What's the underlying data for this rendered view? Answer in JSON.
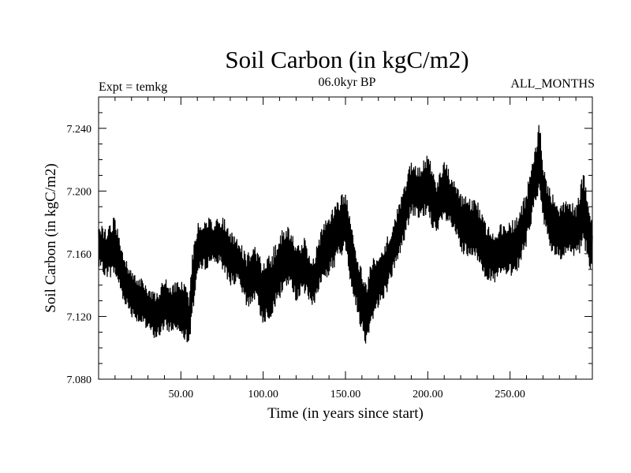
{
  "header": {
    "title": "Soil Carbon (in kgC/m2)",
    "subtitle": "06.0kyr BP",
    "expt": "Expt = temkg",
    "months": "ALL_MONTHS"
  },
  "chart_data": {
    "type": "line",
    "title": "Soil Carbon (in kgC/m2)",
    "xlabel": "Time (in years since start)",
    "ylabel": "Soil Carbon (in kgC/m2)",
    "xlim": [
      0,
      300
    ],
    "ylim": [
      7.08,
      7.26
    ],
    "xticks": [
      50,
      100,
      150,
      200,
      250
    ],
    "xtick_labels": [
      "50.00",
      "100.00",
      "150.00",
      "200.00",
      "250.00"
    ],
    "yticks": [
      7.08,
      7.12,
      7.16,
      7.2,
      7.24
    ],
    "ytick_labels": [
      "7.080",
      "7.120",
      "7.160",
      "7.200",
      "7.240"
    ],
    "grid": false,
    "color": "#000000",
    "series": [
      {
        "x": [
          0,
          5,
          10,
          15,
          20,
          25,
          30,
          35,
          40,
          45,
          50,
          55,
          57,
          60,
          65,
          70,
          75,
          80,
          85,
          90,
          95,
          100,
          105,
          110,
          115,
          120,
          125,
          130,
          135,
          140,
          145,
          150,
          155,
          160,
          163,
          165,
          170,
          175,
          180,
          185,
          190,
          195,
          200,
          205,
          210,
          215,
          220,
          225,
          230,
          235,
          240,
          245,
          250,
          255,
          260,
          265,
          268,
          270,
          275,
          280,
          285,
          290,
          295,
          300
        ],
        "y_upper": [
          7.18,
          7.175,
          7.185,
          7.16,
          7.15,
          7.145,
          7.14,
          7.135,
          7.145,
          7.14,
          7.145,
          7.135,
          7.16,
          7.18,
          7.185,
          7.18,
          7.185,
          7.175,
          7.17,
          7.16,
          7.165,
          7.155,
          7.16,
          7.175,
          7.18,
          7.165,
          7.17,
          7.155,
          7.175,
          7.185,
          7.195,
          7.2,
          7.17,
          7.15,
          7.14,
          7.155,
          7.16,
          7.17,
          7.185,
          7.2,
          7.22,
          7.215,
          7.225,
          7.205,
          7.22,
          7.21,
          7.2,
          7.195,
          7.195,
          7.18,
          7.175,
          7.18,
          7.18,
          7.185,
          7.2,
          7.23,
          7.245,
          7.215,
          7.2,
          7.19,
          7.195,
          7.19,
          7.215,
          7.18
        ],
        "y_lower": [
          7.15,
          7.145,
          7.145,
          7.13,
          7.12,
          7.115,
          7.11,
          7.105,
          7.11,
          7.11,
          7.11,
          7.1,
          7.12,
          7.145,
          7.15,
          7.155,
          7.15,
          7.14,
          7.14,
          7.125,
          7.13,
          7.115,
          7.12,
          7.13,
          7.14,
          7.13,
          7.135,
          7.125,
          7.14,
          7.145,
          7.155,
          7.16,
          7.13,
          7.11,
          7.1,
          7.115,
          7.125,
          7.135,
          7.15,
          7.165,
          7.185,
          7.18,
          7.185,
          7.17,
          7.18,
          7.175,
          7.16,
          7.155,
          7.155,
          7.145,
          7.14,
          7.145,
          7.145,
          7.15,
          7.165,
          7.19,
          7.2,
          7.18,
          7.16,
          7.155,
          7.16,
          7.155,
          7.165,
          7.145
        ]
      }
    ]
  }
}
